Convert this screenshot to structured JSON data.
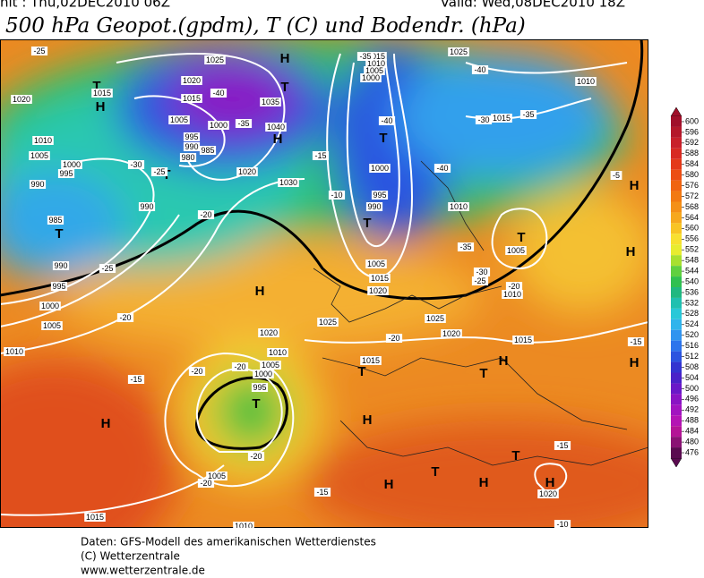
{
  "header": {
    "init": "nit : Thu,02DEC2010 06Z",
    "valid": "Valid: Wed,08DEC2010 18Z",
    "title": "500 hPa Geopot.(gpdm), T (C) und Bodendr. (hPa)"
  },
  "colorbar": {
    "values": [
      600,
      596,
      592,
      588,
      584,
      580,
      576,
      572,
      568,
      564,
      560,
      556,
      552,
      548,
      544,
      540,
      536,
      532,
      528,
      524,
      520,
      516,
      512,
      508,
      504,
      500,
      496,
      492,
      488,
      484,
      480,
      476
    ],
    "colors": [
      "#a0102a",
      "#b4182a",
      "#c8202a",
      "#d82a22",
      "#e43a1a",
      "#ec4e14",
      "#f06410",
      "#f27a12",
      "#f49018",
      "#f6a81e",
      "#f8c424",
      "#f8e030",
      "#e8ec30",
      "#a8e030",
      "#60d040",
      "#30c050",
      "#20b880",
      "#20c0b0",
      "#28c8d8",
      "#30b4ec",
      "#3094f0",
      "#2c74ec",
      "#2c54e0",
      "#3434d0",
      "#4a22c8",
      "#6a18c8",
      "#8a14c4",
      "#a214c0",
      "#b414b4",
      "#b41496",
      "#8a1274",
      "#5a0a50"
    ]
  },
  "map": {
    "labels": [
      "H",
      "T",
      "H",
      "T",
      "T",
      "H",
      "T",
      "H",
      "H",
      "T",
      "T",
      "T",
      "H",
      "H",
      "T",
      "T",
      "H",
      "T",
      "H",
      "T",
      "H",
      "H",
      "H",
      "T",
      "H",
      "1025",
      "1020",
      "1015",
      "1005",
      "1000",
      "995",
      "990",
      "985",
      "980",
      "1035",
      "1040",
      "1030",
      "1020",
      "990",
      "985",
      "990",
      "995",
      "1000",
      "1005",
      "1010",
      "1010",
      "1005",
      "1000",
      "995",
      "990",
      "1020",
      "1015",
      "1015",
      "1010",
      "1005",
      "1000",
      "1000",
      "995",
      "990",
      "1005",
      "1015",
      "1020",
      "1010",
      "1005",
      "1010",
      "1025",
      "1020",
      "1015",
      "1010",
      "1025",
      "1015",
      "1025",
      "1020",
      "1015",
      "1010",
      "1005",
      "1000",
      "995",
      "1005",
      "1015",
      "1020",
      "1010",
      "-25",
      "-40",
      "-35",
      "-40",
      "-40",
      "-35",
      "-30",
      "-30",
      "-25",
      "-35",
      "-20",
      "-25",
      "-20",
      "-15",
      "-20",
      "-20",
      "-20",
      "-20",
      "-15",
      "-15",
      "-10",
      "-15",
      "-20",
      "-35",
      "-30",
      "-25",
      "-20",
      "-15",
      "-10",
      "-40",
      "-5"
    ]
  },
  "footer": [
    "Daten: GFS-Modell des amerikanischen Wetterdienstes",
    "(C) Wetterzentrale",
    "www.wetterzentrale.de"
  ]
}
